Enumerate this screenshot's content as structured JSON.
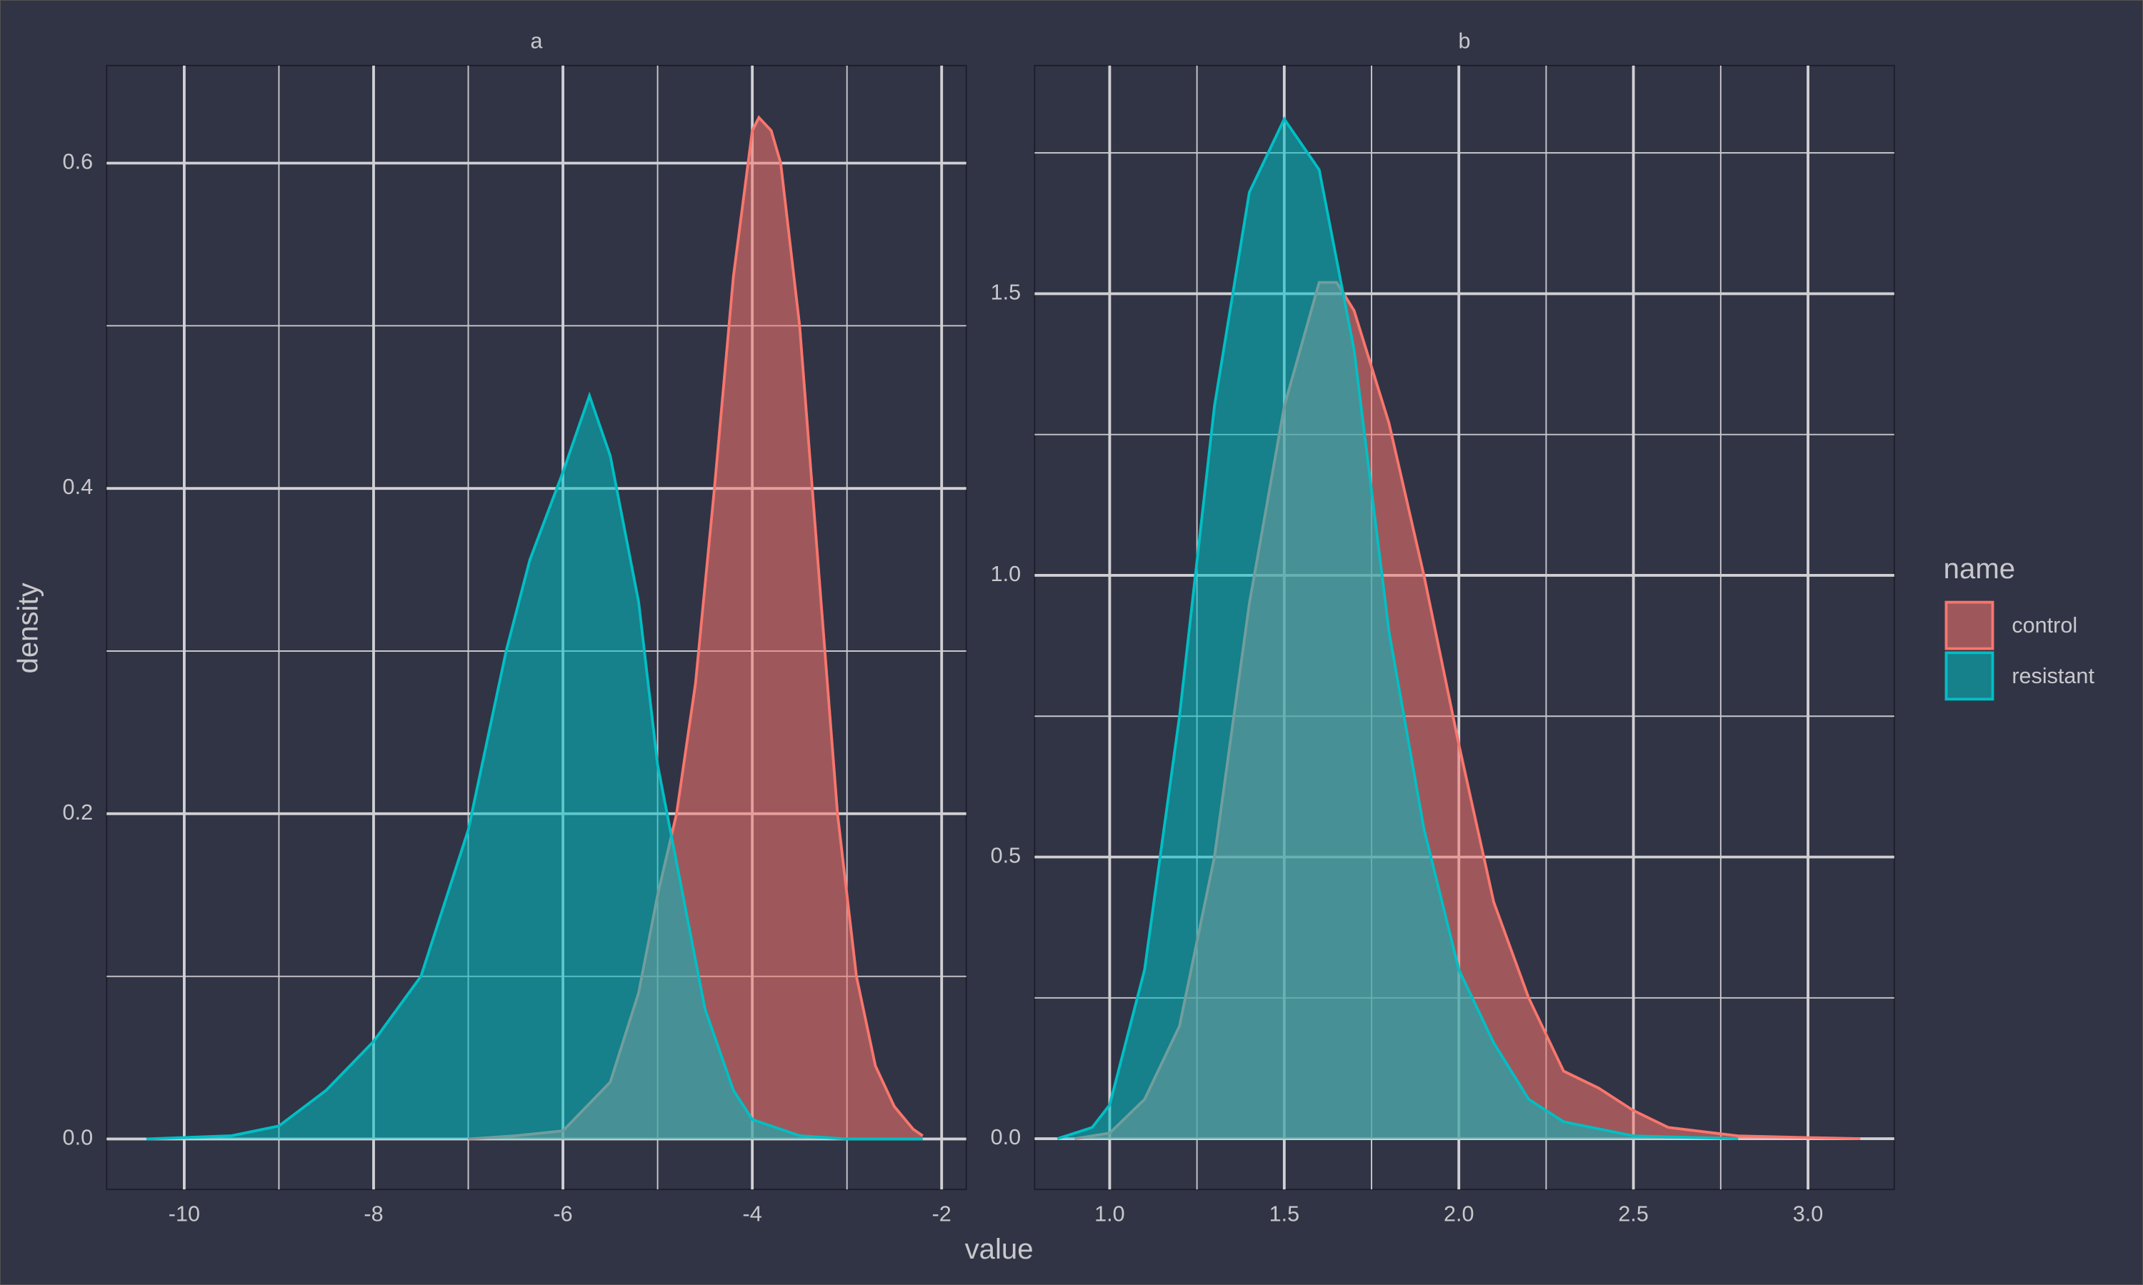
{
  "x_label": "value",
  "y_label": "density",
  "legend_title": "name",
  "chart_data": [
    {
      "type": "density",
      "title": "a",
      "xlim": [
        -10.82,
        -1.74
      ],
      "xticks": [
        -10,
        -8,
        -6,
        -4,
        -2
      ],
      "xminorticks": [
        -9,
        -7,
        -5,
        -3
      ],
      "ylim": [
        -0.031,
        0.66
      ],
      "yticks": [
        {
          "value": 0,
          "label": "0.0"
        },
        {
          "value": 0.2,
          "label": "0.2"
        },
        {
          "value": 0.4,
          "label": "0.4"
        },
        {
          "value": 0.6,
          "label": "0.6"
        }
      ],
      "yminorticks": [
        0.1,
        0.3,
        0.5
      ],
      "grid": true,
      "series": [
        {
          "name": "control",
          "color": "#f8766d",
          "x": [
            -7.0,
            -6.5,
            -6.0,
            -5.5,
            -5.2,
            -5.0,
            -4.8,
            -4.6,
            -4.4,
            -4.2,
            -4.0,
            -3.93,
            -3.8,
            -3.7,
            -3.5,
            -3.3,
            -3.1,
            -2.9,
            -2.7,
            -2.5,
            -2.3,
            -2.2
          ],
          "values": [
            0.0,
            0.002,
            0.005,
            0.035,
            0.09,
            0.15,
            0.2,
            0.28,
            0.4,
            0.53,
            0.62,
            0.628,
            0.62,
            0.6,
            0.5,
            0.35,
            0.2,
            0.1,
            0.045,
            0.02,
            0.006,
            0.002
          ]
        },
        {
          "name": "resistant",
          "color": "#00bfc4",
          "x": [
            -10.4,
            -9.5,
            -9.0,
            -8.5,
            -8.0,
            -7.5,
            -7.0,
            -6.6,
            -6.35,
            -6.0,
            -5.72,
            -5.5,
            -5.2,
            -5.0,
            -4.7,
            -4.5,
            -4.2,
            -4.0,
            -3.5,
            -3.0,
            -2.2
          ],
          "values": [
            0.0,
            0.002,
            0.008,
            0.03,
            0.06,
            0.1,
            0.19,
            0.3,
            0.356,
            0.41,
            0.457,
            0.42,
            0.33,
            0.23,
            0.14,
            0.08,
            0.03,
            0.012,
            0.002,
            0.0,
            0.0
          ]
        }
      ]
    },
    {
      "type": "density",
      "title": "b",
      "xlim": [
        0.785,
        3.247
      ],
      "xticks": [
        {
          "value": 1,
          "label": "1.0"
        },
        {
          "value": 1.5,
          "label": "1.5"
        },
        {
          "value": 2,
          "label": "2.0"
        },
        {
          "value": 2.5,
          "label": "2.5"
        },
        {
          "value": 3,
          "label": "3.0"
        }
      ],
      "xminorticks": [
        1.25,
        1.75,
        2.25,
        2.75
      ],
      "ylim": [
        -0.09,
        1.905
      ],
      "yticks": [
        {
          "value": 0,
          "label": "0.0"
        },
        {
          "value": 0.5,
          "label": "0.5"
        },
        {
          "value": 1,
          "label": "1.0"
        },
        {
          "value": 1.5,
          "label": "1.5"
        }
      ],
      "yminorticks": [
        0.25,
        0.75,
        1.25,
        1.75
      ],
      "grid": true,
      "series": [
        {
          "name": "control",
          "color": "#f8766d",
          "x": [
            0.9,
            1.0,
            1.1,
            1.2,
            1.3,
            1.4,
            1.5,
            1.6,
            1.65,
            1.7,
            1.8,
            1.9,
            2.0,
            2.1,
            2.2,
            2.3,
            2.4,
            2.5,
            2.6,
            2.8,
            3.0,
            3.15
          ],
          "values": [
            0.0,
            0.01,
            0.07,
            0.2,
            0.5,
            0.95,
            1.3,
            1.52,
            1.52,
            1.47,
            1.27,
            1.0,
            0.7,
            0.42,
            0.25,
            0.12,
            0.09,
            0.05,
            0.02,
            0.005,
            0.002,
            0.0
          ]
        },
        {
          "name": "resistant",
          "color": "#00bfc4",
          "x": [
            0.85,
            0.95,
            1.0,
            1.1,
            1.2,
            1.3,
            1.4,
            1.5,
            1.6,
            1.7,
            1.8,
            1.9,
            2.0,
            2.1,
            2.2,
            2.3,
            2.5,
            2.8
          ],
          "values": [
            0.0,
            0.02,
            0.06,
            0.3,
            0.75,
            1.3,
            1.68,
            1.81,
            1.72,
            1.4,
            0.9,
            0.55,
            0.3,
            0.17,
            0.07,
            0.03,
            0.005,
            0.0
          ]
        }
      ]
    }
  ]
}
